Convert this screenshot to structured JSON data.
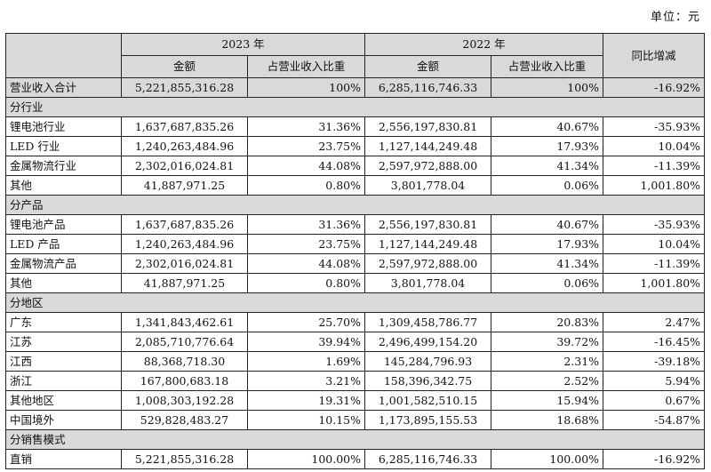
{
  "unit_label": "单位：元",
  "headers": {
    "year_a": "2023 年",
    "year_b": "2022 年",
    "amount": "金额",
    "share": "占营业收入比重",
    "yoy": "同比增减"
  },
  "total": {
    "label": "营业收入合计",
    "amt_2023": "5,221,855,316.28",
    "share_2023": "100%",
    "amt_2022": "6,285,116,746.33",
    "share_2022": "100%",
    "yoy": "-16.92%"
  },
  "sections": [
    {
      "title": "分行业",
      "rows": [
        {
          "label": "锂电池行业",
          "amt_2023": "1,637,687,835.26",
          "share_2023": "31.36%",
          "amt_2022": "2,556,197,830.81",
          "share_2022": "40.67%",
          "yoy": "-35.93%"
        },
        {
          "label": "LED 行业",
          "amt_2023": "1,240,263,484.96",
          "share_2023": "23.75%",
          "amt_2022": "1,127,144,249.48",
          "share_2022": "17.93%",
          "yoy": "10.04%"
        },
        {
          "label": "金属物流行业",
          "amt_2023": "2,302,016,024.81",
          "share_2023": "44.08%",
          "amt_2022": "2,597,972,888.00",
          "share_2022": "41.34%",
          "yoy": "-11.39%"
        },
        {
          "label": "其他",
          "amt_2023": "41,887,971.25",
          "share_2023": "0.80%",
          "amt_2022": "3,801,778.04",
          "share_2022": "0.06%",
          "yoy": "1,001.80%"
        }
      ]
    },
    {
      "title": "分产品",
      "rows": [
        {
          "label": "锂电池产品",
          "amt_2023": "1,637,687,835.26",
          "share_2023": "31.36%",
          "amt_2022": "2,556,197,830.81",
          "share_2022": "40.67%",
          "yoy": "-35.93%"
        },
        {
          "label": "LED 产品",
          "amt_2023": "1,240,263,484.96",
          "share_2023": "23.75%",
          "amt_2022": "1,127,144,249.48",
          "share_2022": "17.93%",
          "yoy": "10.04%"
        },
        {
          "label": "金属物流产品",
          "amt_2023": "2,302,016,024.81",
          "share_2023": "44.08%",
          "amt_2022": "2,597,972,888.00",
          "share_2022": "41.34%",
          "yoy": "-11.39%"
        },
        {
          "label": "其他",
          "amt_2023": "41,887,971.25",
          "share_2023": "0.80%",
          "amt_2022": "3,801,778.04",
          "share_2022": "0.06%",
          "yoy": "1,001.80%"
        }
      ]
    },
    {
      "title": "分地区",
      "rows": [
        {
          "label": "广东",
          "amt_2023": "1,341,843,462.61",
          "share_2023": "25.70%",
          "amt_2022": "1,309,458,786.77",
          "share_2022": "20.83%",
          "yoy": "2.47%"
        },
        {
          "label": "江苏",
          "amt_2023": "2,085,710,776.64",
          "share_2023": "39.94%",
          "amt_2022": "2,496,499,154.20",
          "share_2022": "39.72%",
          "yoy": "-16.45%"
        },
        {
          "label": "江西",
          "amt_2023": "88,368,718.30",
          "share_2023": "1.69%",
          "amt_2022": "145,284,796.93",
          "share_2022": "2.31%",
          "yoy": "-39.18%"
        },
        {
          "label": "浙江",
          "amt_2023": "167,800,683.18",
          "share_2023": "3.21%",
          "amt_2022": "158,396,342.75",
          "share_2022": "2.52%",
          "yoy": "5.94%"
        },
        {
          "label": "其他地区",
          "amt_2023": "1,008,303,192.28",
          "share_2023": "19.31%",
          "amt_2022": "1,001,582,510.15",
          "share_2022": "15.94%",
          "yoy": "0.67%"
        },
        {
          "label": "中国境外",
          "amt_2023": "529,828,483.27",
          "share_2023": "10.15%",
          "amt_2022": "1,173,895,155.53",
          "share_2022": "18.68%",
          "yoy": "-54.87%"
        }
      ]
    },
    {
      "title": "分销售模式",
      "rows": [
        {
          "label": "直销",
          "amt_2023": "5,221,855,316.28",
          "share_2023": "100.00%",
          "amt_2022": "6,285,116,746.33",
          "share_2022": "100.00%",
          "yoy": "-16.92%"
        }
      ]
    }
  ]
}
